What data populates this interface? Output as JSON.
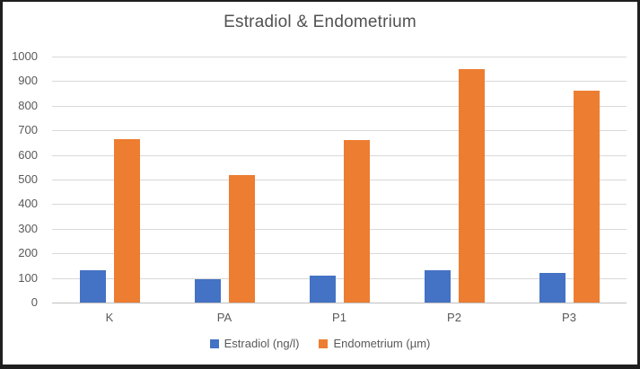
{
  "chart_data": {
    "type": "bar",
    "title": "Estradiol & Endometrium",
    "categories": [
      "K",
      "PA",
      "P1",
      "P2",
      "P3"
    ],
    "series": [
      {
        "name": "Estradiol (ng/l)",
        "color": "#4472C4",
        "values": [
          130,
          95,
          110,
          130,
          120
        ]
      },
      {
        "name": "Endometrium (µm)",
        "color": "#ED7D31",
        "values": [
          665,
          520,
          660,
          950,
          860
        ]
      }
    ],
    "xlabel": "",
    "ylabel": "",
    "ylim": [
      0,
      1000
    ],
    "ytick_step": 100,
    "grid": true,
    "legend_position": "bottom",
    "colors": {
      "title_text": "#525252",
      "axis_text": "#595959",
      "gridline": "#d9d9d9",
      "axis_line": "#bfbfbf",
      "frame_border": "#1f1f1f",
      "background": "#ffffff"
    }
  }
}
